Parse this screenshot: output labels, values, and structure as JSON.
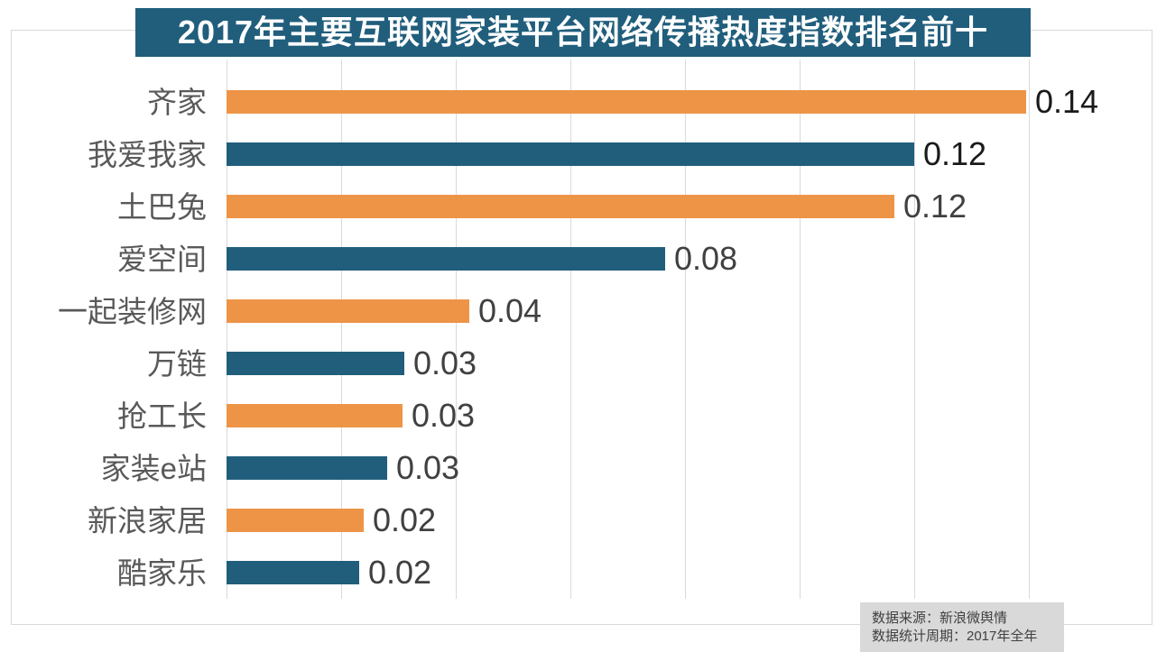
{
  "title": "2017年主要互联网家装平台网络传播热度指数排名前十",
  "chart_data": {
    "type": "bar",
    "orientation": "horizontal",
    "title": "2017年主要互联网家装平台网络传播热度指数排名前十",
    "xlabel": "",
    "ylabel": "",
    "categories": [
      "齐家",
      "我爱我家",
      "土巴兔",
      "爱空间",
      "一起装修网",
      "万链",
      "抢工长",
      "家装e站",
      "新浪家居",
      "酷家乐"
    ],
    "values": [
      0.14,
      0.12,
      0.12,
      0.08,
      0.04,
      0.03,
      0.03,
      0.03,
      0.02,
      0.02
    ],
    "value_labels": [
      "0.14",
      "0.12",
      "0.12",
      "0.08",
      "0.04",
      "0.03",
      "0.03",
      "0.03",
      "0.02",
      "0.02"
    ],
    "bar_lengths_precise_estimate": [
      0.1396,
      0.12,
      0.1165,
      0.0766,
      0.0424,
      0.031,
      0.0307,
      0.0281,
      0.024,
      0.0231
    ],
    "bar_colors": [
      "#ED9447",
      "#205E7C",
      "#ED9447",
      "#205E7C",
      "#ED9447",
      "#205E7C",
      "#ED9447",
      "#205E7C",
      "#ED9447",
      "#205E7C"
    ],
    "value_label_colors": [
      "#1a1a1a",
      "#1a1a1a",
      "#404040",
      "#404040",
      "#404040",
      "#404040",
      "#404040",
      "#404040",
      "#404040",
      "#404040"
    ],
    "xlim": [
      0,
      0.16
    ],
    "grid": true,
    "grid_interval": 0.02,
    "gridline_values": [
      0,
      0.02,
      0.04,
      0.06,
      0.08,
      0.1,
      0.12,
      0.14
    ],
    "legend_position": "none"
  },
  "footer": {
    "source": "数据来源：新浪微舆情",
    "period": "数据统计周期：2017年全年"
  },
  "colors": {
    "bar_orange": "#ED9447",
    "bar_blue": "#205E7C",
    "banner_bg": "#205E7C",
    "banner_text": "#FFFFFF",
    "gridline": "#DADADA",
    "box_border": "#D9D9D9",
    "category_text": "#595959",
    "footer_bg": "#D9D9D9",
    "footer_text": "#404040"
  }
}
